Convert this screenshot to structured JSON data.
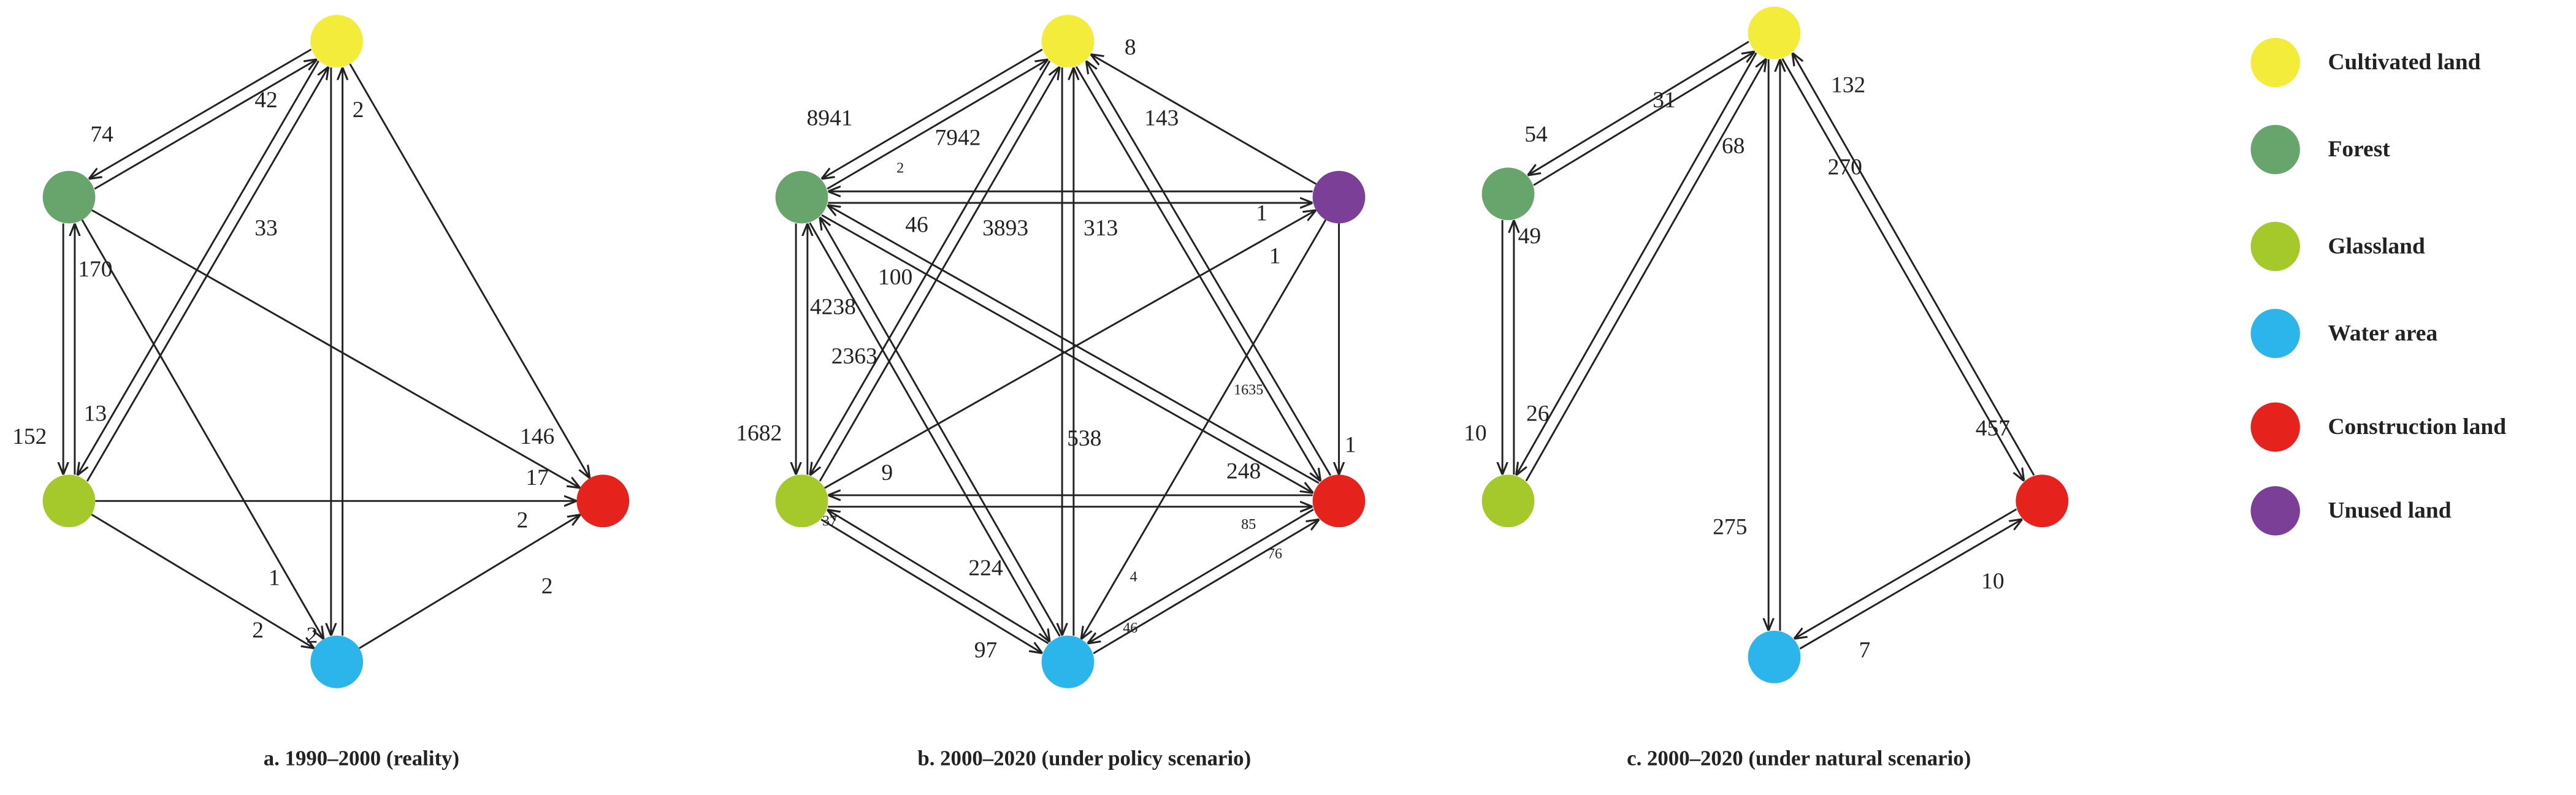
{
  "legend": [
    {
      "label": "Cultivated land",
      "color": "#f4ec3b"
    },
    {
      "label": "Forest",
      "color": "#68a56d"
    },
    {
      "label": "Glassland",
      "color": "#a5c82b"
    },
    {
      "label": "Water area",
      "color": "#2bb5ea"
    },
    {
      "label": "Construction land",
      "color": "#e6221d"
    },
    {
      "label": "Unused land",
      "color": "#7c3f97"
    }
  ],
  "panels": [
    {
      "caption": "a.  1990–2000 (reality)",
      "labels": [
        74,
        42,
        33,
        2,
        170,
        152,
        13,
        146,
        17,
        2,
        2,
        1,
        2,
        2
      ]
    },
    {
      "caption": "b.  2000–2020 (under policy scenario)",
      "labels": [
        8941,
        7942,
        2,
        8,
        143,
        46,
        3893,
        313,
        1,
        1,
        100,
        4238,
        2363,
        1635,
        1,
        1682,
        538,
        248,
        9,
        37,
        85,
        76,
        224,
        4,
        46,
        97
      ]
    },
    {
      "caption": "c.  2000–2020 (under natural scenario)",
      "labels": [
        54,
        31,
        68,
        132,
        270,
        49,
        26,
        10,
        457,
        275,
        10,
        7
      ]
    }
  ]
}
